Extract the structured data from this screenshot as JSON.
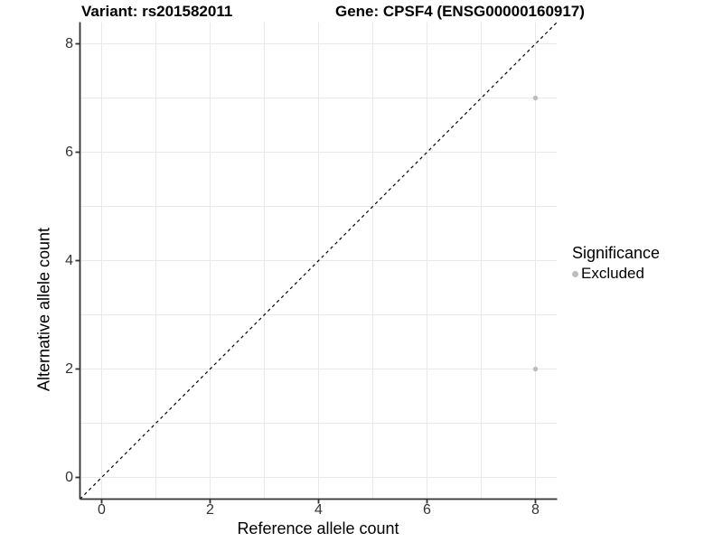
{
  "titles": {
    "variant": "Variant: rs201582011",
    "gene": "Gene: CPSF4 (ENSG00000160917)"
  },
  "chart_data": {
    "type": "scatter",
    "title": "Variant: rs201582011   Gene: CPSF4 (ENSG00000160917)",
    "xlabel": "Reference allele count",
    "ylabel": "Alternative allele count",
    "xlim": [
      -0.4,
      8.4
    ],
    "ylim": [
      -0.4,
      8.4
    ],
    "xticks": [
      0,
      2,
      4,
      6,
      8
    ],
    "yticks": [
      0,
      2,
      4,
      6,
      8
    ],
    "grid_x": [
      0,
      1,
      2,
      3,
      4,
      5,
      6,
      7,
      8
    ],
    "grid_y": [
      0,
      1,
      2,
      3,
      4,
      5,
      6,
      7,
      8
    ],
    "grid_on": true,
    "series": [
      {
        "name": "Excluded",
        "color": "#bdbdbd",
        "points": [
          [
            8,
            7
          ],
          [
            8,
            2
          ]
        ]
      }
    ],
    "identity_line": {
      "from": [
        -0.4,
        -0.4
      ],
      "to": [
        8.4,
        8.4
      ],
      "style": "dashed",
      "color": "#000000"
    },
    "legend": {
      "position": "right",
      "title": "Significance",
      "items": [
        {
          "label": "Excluded",
          "color": "#bdbdbd"
        }
      ]
    }
  },
  "colors": {
    "background": "#ffffff",
    "gridline": "#e9e9e9",
    "axis_line": "#333333",
    "tick_text": "#333333",
    "point": "#bdbdbd",
    "identity_line": "#000000"
  }
}
